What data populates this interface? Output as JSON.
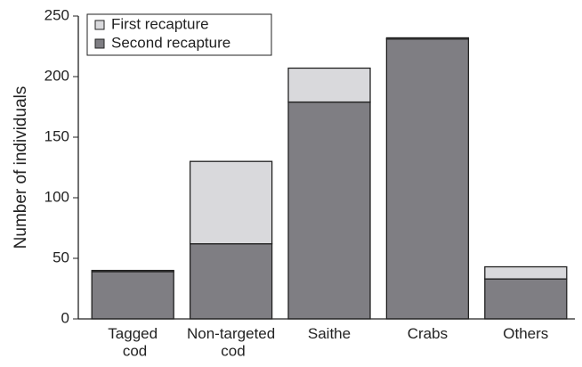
{
  "chart_data": {
    "type": "stacked-bar",
    "y_label": "Number of individuals",
    "categories": [
      "Tagged cod",
      "Non-targeted cod",
      "Saithe",
      "Crabs",
      "Others"
    ],
    "series": [
      {
        "name": "Second recapture",
        "color": "#7f7e83",
        "values": [
          39,
          62,
          179,
          231,
          33
        ]
      },
      {
        "name": "First recapture",
        "color": "#d9d9dc",
        "values": [
          1,
          68,
          28,
          1,
          10
        ]
      }
    ],
    "legend_order": [
      1,
      0
    ],
    "ylim": [
      0,
      250
    ],
    "yticks": [
      0,
      50,
      100,
      150,
      200,
      250
    ]
  }
}
